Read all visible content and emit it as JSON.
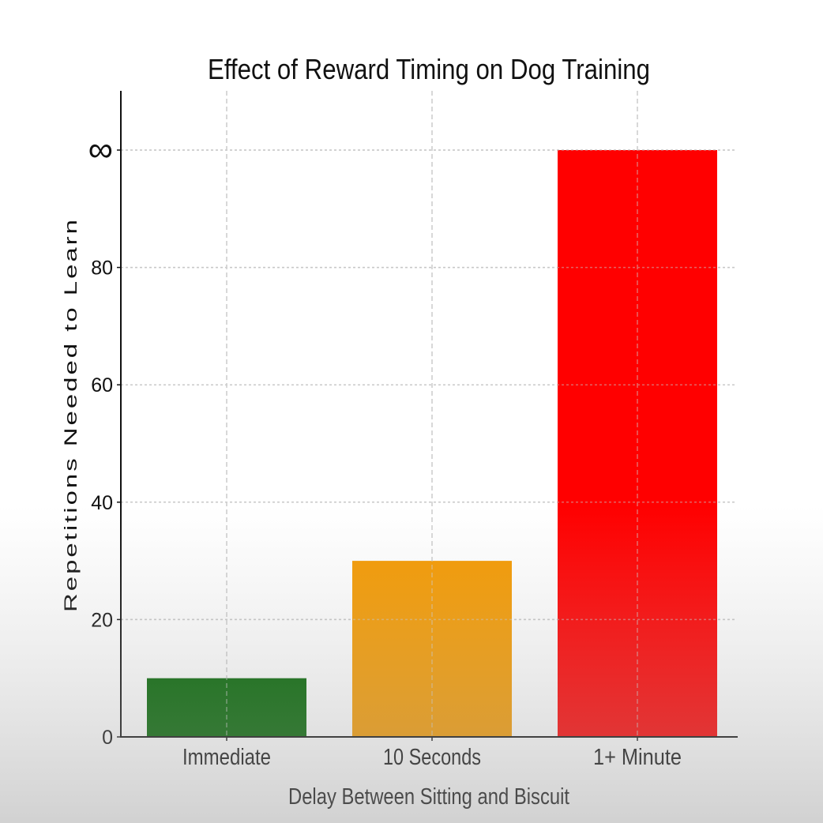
{
  "chart_data": {
    "type": "bar",
    "title": "Effect of Reward Timing on Dog Training",
    "xlabel": "Delay Between Sitting and Biscuit",
    "ylabel": "Repetitions Needed to Learn",
    "categories": [
      "Immediate",
      "10 Seconds",
      "1+ Minute"
    ],
    "values": [
      10,
      30,
      100
    ],
    "colors": [
      "#006400",
      "#f59a00",
      "#ff0000"
    ],
    "ylim": [
      0,
      110
    ],
    "yticks": [
      0,
      20,
      40,
      60,
      80,
      100
    ],
    "ytick_labels": [
      "0",
      "20",
      "40",
      "60",
      "80",
      "∞"
    ],
    "grid": true,
    "notes": "The top y tick (100) is labelled ∞, and the '1+ Minute' bar reaches it."
  }
}
